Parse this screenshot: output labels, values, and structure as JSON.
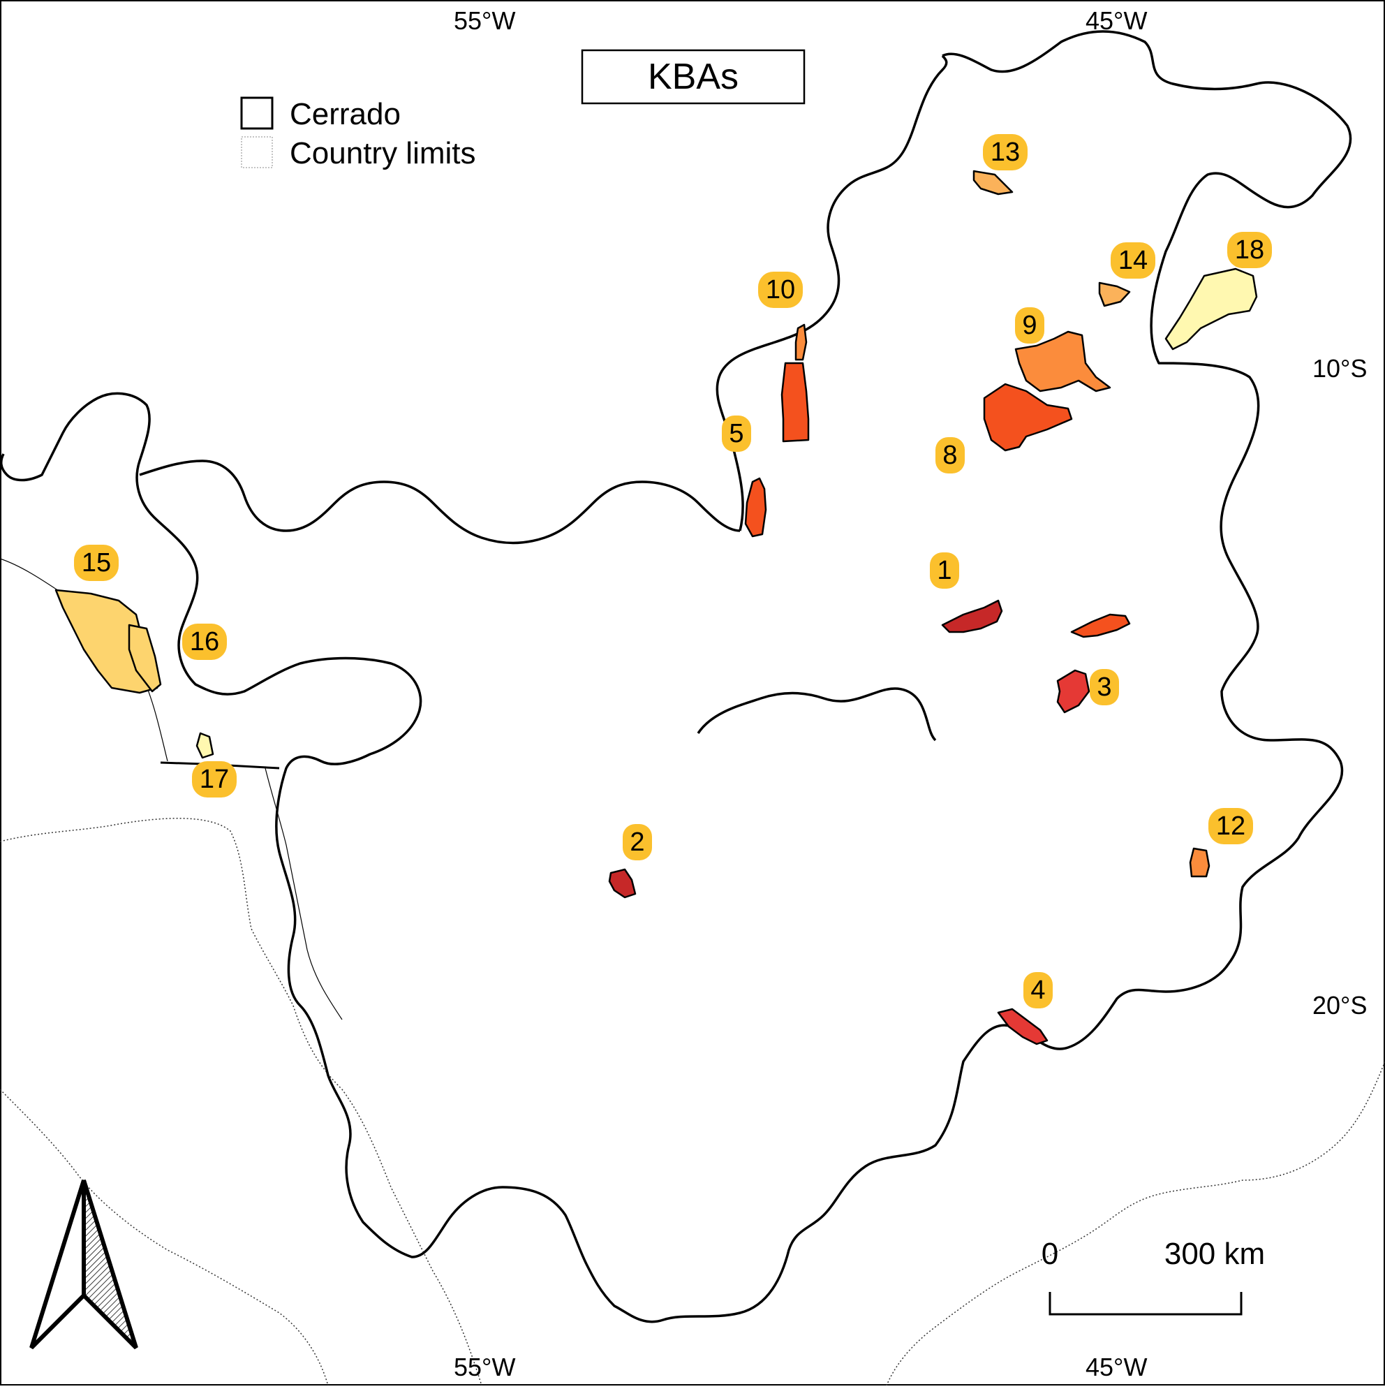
{
  "title": "KBAs",
  "legend": {
    "items": [
      {
        "label": "Cerrado",
        "style": "solid-outline"
      },
      {
        "label": "Country limits",
        "style": "dotted-outline"
      }
    ]
  },
  "graticule": {
    "top": [
      "55°W",
      "45°W"
    ],
    "bottom": [
      "55°W",
      "45°W"
    ],
    "right": [
      "10°S",
      "20°S"
    ]
  },
  "scale_bar": {
    "start": "0",
    "end": "300 km"
  },
  "kba_labels": [
    "1",
    "2",
    "3",
    "4",
    "5",
    "8",
    "9",
    "10",
    "12",
    "13",
    "14",
    "15",
    "16",
    "17",
    "18"
  ],
  "colors": {
    "label_badge": "#FBC02D",
    "kba_red_dark": "#C62828",
    "kba_red": "#E53935",
    "kba_orange_red": "#F4511E",
    "kba_orange": "#FB8C3C",
    "kba_light_orange": "#FBB25A",
    "kba_yellow": "#FDD46E",
    "kba_pale_yellow": "#FFF8B0",
    "outline": "#000000"
  },
  "icons": {
    "north_arrow": "north-arrow-icon"
  }
}
